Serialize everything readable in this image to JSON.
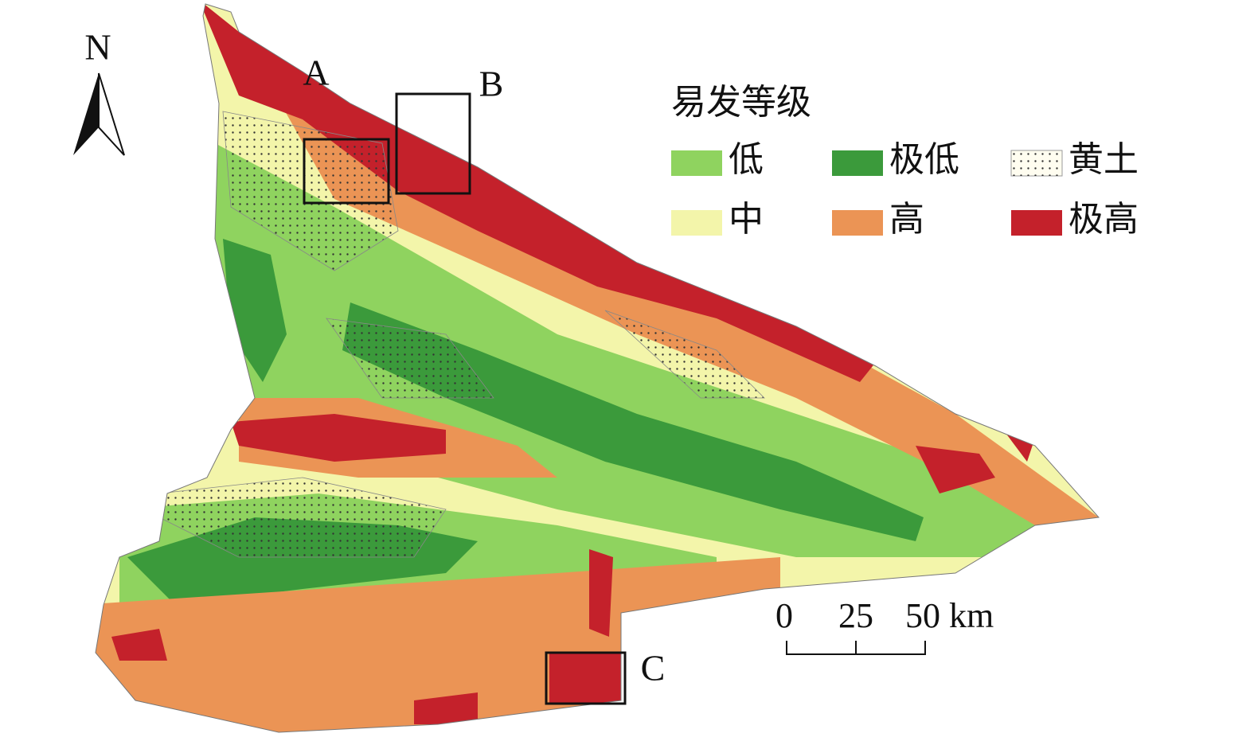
{
  "north_arrow": {
    "label": "N"
  },
  "boxes": [
    {
      "label": "A"
    },
    {
      "label": "B"
    },
    {
      "label": "C"
    }
  ],
  "legend": {
    "title": "易发等级",
    "items": [
      {
        "label": "低",
        "color": "#8fd35f"
      },
      {
        "label": "极低",
        "color": "#3b9a3b"
      },
      {
        "label": "黄土",
        "color": "#fffdf0"
      },
      {
        "label": "中",
        "color": "#f3f5aa"
      },
      {
        "label": "高",
        "color": "#eb9455"
      },
      {
        "label": "极高",
        "color": "#c4212b"
      }
    ]
  },
  "scale_bar": {
    "ticks": [
      "0",
      "25",
      "50 km"
    ]
  }
}
